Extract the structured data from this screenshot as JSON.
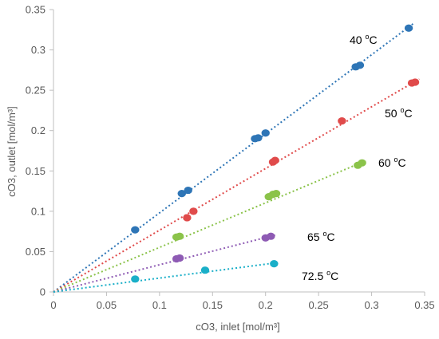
{
  "chart_data": {
    "type": "scatter",
    "xlabel": "cO3, inlet [mol/m³]",
    "ylabel": "cO3, outlet [mol/m³]",
    "xlim": [
      0,
      0.35
    ],
    "ylim": [
      0,
      0.35
    ],
    "xticks": [
      "0",
      "0.05",
      "0.1",
      "0.15",
      "0.2",
      "0.25",
      "0.3",
      "0.35"
    ],
    "yticks": [
      "0",
      "0.05",
      "0.1",
      "0.15",
      "0.2",
      "0.25",
      "0.3",
      "0.35"
    ],
    "grid": false,
    "legend": "none",
    "series": [
      {
        "label_value": "40 ",
        "label_unit_sup": "o",
        "label_unit": "C",
        "color": "#2E75B6",
        "trendline_slope": 0.98,
        "points": [
          [
            0.077,
            0.077
          ],
          [
            0.121,
            0.122
          ],
          [
            0.127,
            0.126
          ],
          [
            0.19,
            0.19
          ],
          [
            0.193,
            0.191
          ],
          [
            0.2,
            0.197
          ],
          [
            0.285,
            0.279
          ],
          [
            0.289,
            0.281
          ],
          [
            0.335,
            0.327
          ]
        ]
      },
      {
        "label_value": "50 ",
        "label_unit_sup": "o",
        "label_unit": "C",
        "color": "#E04B4B",
        "trendline_slope": 0.765,
        "points": [
          [
            0.126,
            0.092
          ],
          [
            0.132,
            0.1
          ],
          [
            0.207,
            0.161
          ],
          [
            0.209,
            0.163
          ],
          [
            0.272,
            0.212
          ],
          [
            0.338,
            0.259
          ],
          [
            0.341,
            0.26
          ]
        ]
      },
      {
        "label_value": "60 ",
        "label_unit_sup": "o",
        "label_unit": "C",
        "color": "#8BC34A",
        "trendline_slope": 0.552,
        "points": [
          [
            0.116,
            0.068
          ],
          [
            0.119,
            0.069
          ],
          [
            0.203,
            0.118
          ],
          [
            0.207,
            0.121
          ],
          [
            0.21,
            0.122
          ],
          [
            0.287,
            0.157
          ],
          [
            0.291,
            0.16
          ]
        ]
      },
      {
        "label_value": "65 ",
        "label_unit_sup": "o",
        "label_unit": "C",
        "color": "#8E5BB4",
        "trendline_slope": 0.337,
        "points": [
          [
            0.116,
            0.041
          ],
          [
            0.119,
            0.042
          ],
          [
            0.2,
            0.067
          ],
          [
            0.205,
            0.069
          ]
        ]
      },
      {
        "label_value": "72.5 ",
        "label_unit_sup": "o",
        "label_unit": "C",
        "color": "#1AAFC8",
        "trendline_slope": 0.172,
        "points": [
          [
            0.077,
            0.016
          ],
          [
            0.143,
            0.027
          ],
          [
            0.208,
            0.035
          ]
        ]
      }
    ]
  }
}
